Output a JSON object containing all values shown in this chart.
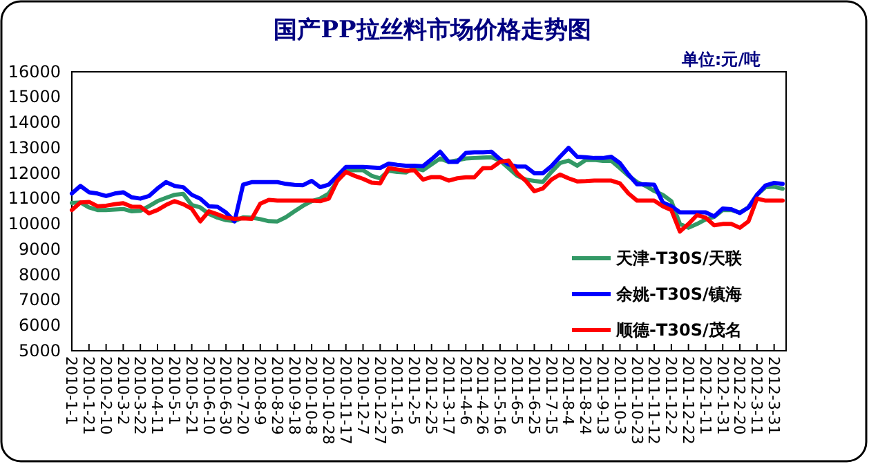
{
  "chart_data": {
    "type": "line",
    "title": "国产PP拉丝料市场价格走势图",
    "annotations": [
      "单位:元/吨"
    ],
    "x": [
      "2010-01-01",
      "2010-01-11",
      "2010-01-21",
      "2010-01-31",
      "2010-02-10",
      "2010-02-20",
      "2010-03-02",
      "2010-03-12",
      "2010-03-22",
      "2010-04-01",
      "2010-04-11",
      "2010-04-21",
      "2010-05-01",
      "2010-05-11",
      "2010-05-21",
      "2010-05-31",
      "2010-06-10",
      "2010-06-20",
      "2010-06-30",
      "2010-07-10",
      "2010-07-20",
      "2010-07-30",
      "2010-08-09",
      "2010-08-19",
      "2010-08-29",
      "2010-09-08",
      "2010-09-18",
      "2010-09-28",
      "2010-10-08",
      "2010-10-18",
      "2010-10-28",
      "2010-11-07",
      "2010-11-17",
      "2010-11-27",
      "2010-12-07",
      "2010-12-17",
      "2010-12-27",
      "2011-01-06",
      "2011-01-16",
      "2011-01-26",
      "2011-02-05",
      "2011-02-15",
      "2011-02-25",
      "2011-03-07",
      "2011-03-17",
      "2011-03-27",
      "2011-04-06",
      "2011-04-16",
      "2011-04-26",
      "2011-05-06",
      "2011-05-16",
      "2011-05-26",
      "2011-06-05",
      "2011-06-15",
      "2011-06-25",
      "2011-07-05",
      "2011-07-15",
      "2011-07-25",
      "2011-08-04",
      "2011-08-14",
      "2011-08-24",
      "2011-09-03",
      "2011-09-13",
      "2011-09-23",
      "2011-10-03",
      "2011-10-13",
      "2011-10-23",
      "2011-11-02",
      "2011-11-12",
      "2011-11-22",
      "2011-12-02",
      "2011-12-12",
      "2011-12-22",
      "2012-01-01",
      "2012-01-11",
      "2012-01-21",
      "2012-01-31",
      "2012-02-10",
      "2012-02-20",
      "2012-03-01",
      "2012-03-11",
      "2012-03-21",
      "2012-03-31",
      "2012-04-10"
    ],
    "series": [
      {
        "name": "天津-T30S/天联",
        "color": "#339966",
        "values": [
          10830,
          10850,
          10650,
          10550,
          10550,
          10570,
          10590,
          10500,
          10520,
          10700,
          10900,
          11030,
          11150,
          11190,
          10750,
          10650,
          10400,
          10250,
          10150,
          10110,
          10260,
          10250,
          10190,
          10110,
          10100,
          10270,
          10500,
          10720,
          10900,
          11000,
          11200,
          11700,
          12120,
          12120,
          12120,
          11900,
          11800,
          12100,
          12050,
          12030,
          12210,
          12120,
          12350,
          12580,
          12450,
          12510,
          12580,
          12600,
          12620,
          12630,
          12500,
          12200,
          11900,
          11750,
          11700,
          11660,
          12050,
          12400,
          12500,
          12300,
          12520,
          12530,
          12490,
          12490,
          12200,
          11900,
          11650,
          11500,
          11300,
          11150,
          10900,
          10000,
          9850,
          10000,
          10180,
          10280,
          10550,
          10550,
          10450,
          10650,
          11150,
          11450,
          11470,
          11390
        ]
      },
      {
        "name": "余姚-T30S/镇海",
        "color": "#0000ff",
        "values": [
          11200,
          11500,
          11250,
          11200,
          11100,
          11200,
          11250,
          11050,
          11000,
          11100,
          11400,
          11650,
          11500,
          11450,
          11150,
          11000,
          10700,
          10680,
          10450,
          10100,
          11550,
          11650,
          11650,
          11650,
          11650,
          11580,
          11540,
          11530,
          11700,
          11450,
          11550,
          11900,
          12250,
          12250,
          12250,
          12230,
          12210,
          12380,
          12330,
          12300,
          12300,
          12280,
          12550,
          12850,
          12450,
          12450,
          12800,
          12830,
          12830,
          12850,
          12550,
          12350,
          12260,
          12260,
          12000,
          12000,
          12280,
          12650,
          13000,
          12650,
          12630,
          12600,
          12600,
          12650,
          12400,
          11950,
          11560,
          11560,
          11550,
          10850,
          10700,
          10460,
          10460,
          10460,
          10460,
          10300,
          10610,
          10580,
          10430,
          10650,
          11150,
          11520,
          11620,
          11580
        ]
      },
      {
        "name": "顺德-T30S/茂名",
        "color": "#ff0000",
        "values": [
          10550,
          10850,
          10870,
          10700,
          10720,
          10780,
          10820,
          10680,
          10680,
          10420,
          10550,
          10750,
          10900,
          10780,
          10600,
          10100,
          10500,
          10380,
          10250,
          10200,
          10220,
          10200,
          10800,
          10950,
          10920,
          10920,
          10920,
          10920,
          10920,
          10900,
          11000,
          11700,
          12050,
          11900,
          11780,
          11630,
          11600,
          12200,
          12150,
          12100,
          12120,
          11750,
          11850,
          11850,
          11710,
          11800,
          11840,
          11840,
          12200,
          12210,
          12450,
          12500,
          12000,
          11700,
          11290,
          11400,
          11750,
          11950,
          11800,
          11680,
          11690,
          11710,
          11710,
          11710,
          11600,
          11200,
          10920,
          10920,
          10920,
          10700,
          10550,
          9700,
          10000,
          10350,
          10250,
          9950,
          10000,
          10000,
          9850,
          10100,
          11000,
          10920,
          10920,
          10920
        ]
      }
    ],
    "ylim": [
      5000,
      16000
    ],
    "yticks": [
      5000,
      6000,
      7000,
      8000,
      9000,
      10000,
      11000,
      12000,
      13000,
      14000,
      15000,
      16000
    ],
    "xlim": [
      "2010-01-01",
      "2012-04-14"
    ],
    "xticks": [
      {
        "value": "2010-01-01",
        "label": "2010-1-1"
      },
      {
        "value": "2010-01-21",
        "label": "2010-1-21"
      },
      {
        "value": "2010-02-10",
        "label": "2010-2-10"
      },
      {
        "value": "2010-03-02",
        "label": "2010-3-2"
      },
      {
        "value": "2010-03-22",
        "label": "2010-3-22"
      },
      {
        "value": "2010-04-11",
        "label": "2010-4-11"
      },
      {
        "value": "2010-05-01",
        "label": "2010-5-1"
      },
      {
        "value": "2010-05-21",
        "label": "2010-5-21"
      },
      {
        "value": "2010-06-10",
        "label": "2010-6-10"
      },
      {
        "value": "2010-06-30",
        "label": "2010-6-30"
      },
      {
        "value": "2010-07-20",
        "label": "2010-7-20"
      },
      {
        "value": "2010-08-09",
        "label": "2010-8-9"
      },
      {
        "value": "2010-08-29",
        "label": "2010-8-29"
      },
      {
        "value": "2010-09-18",
        "label": "2010-9-18"
      },
      {
        "value": "2010-10-08",
        "label": "2010-10-8"
      },
      {
        "value": "2010-10-28",
        "label": "2010-10-28"
      },
      {
        "value": "2010-11-17",
        "label": "2010-11-17"
      },
      {
        "value": "2010-12-07",
        "label": "2010-12-7"
      },
      {
        "value": "2010-12-27",
        "label": "2010-12-27"
      },
      {
        "value": "2011-01-16",
        "label": "2011-1-16"
      },
      {
        "value": "2011-02-05",
        "label": "2011-2-5"
      },
      {
        "value": "2011-02-25",
        "label": "2011-2-25"
      },
      {
        "value": "2011-03-17",
        "label": "2011-3-17"
      },
      {
        "value": "2011-04-06",
        "label": "2011-4-6"
      },
      {
        "value": "2011-04-26",
        "label": "2011-4-26"
      },
      {
        "value": "2011-05-16",
        "label": "2011-5-16"
      },
      {
        "value": "2011-06-05",
        "label": "2011-6-5"
      },
      {
        "value": "2011-06-25",
        "label": "2011-6-25"
      },
      {
        "value": "2011-07-15",
        "label": "2011-7-15"
      },
      {
        "value": "2011-08-04",
        "label": "2011-8-4"
      },
      {
        "value": "2011-08-24",
        "label": "2011-8-24"
      },
      {
        "value": "2011-09-13",
        "label": "2011-9-13"
      },
      {
        "value": "2011-10-03",
        "label": "2011-10-3"
      },
      {
        "value": "2011-10-23",
        "label": "2011-10-23"
      },
      {
        "value": "2011-11-12",
        "label": "2011-11-12"
      },
      {
        "value": "2011-12-02",
        "label": "2011-12-2"
      },
      {
        "value": "2011-12-22",
        "label": "2011-12-22"
      },
      {
        "value": "2012-01-11",
        "label": "2012-1-11"
      },
      {
        "value": "2012-01-31",
        "label": "2012-1-31"
      },
      {
        "value": "2012-02-20",
        "label": "2012-2-20"
      },
      {
        "value": "2012-03-11",
        "label": "2012-3-11"
      },
      {
        "value": "2012-03-31",
        "label": "2012-3-31"
      }
    ],
    "grid": false,
    "legend": "bottom right",
    "marker": "none",
    "line_style": "solid"
  }
}
